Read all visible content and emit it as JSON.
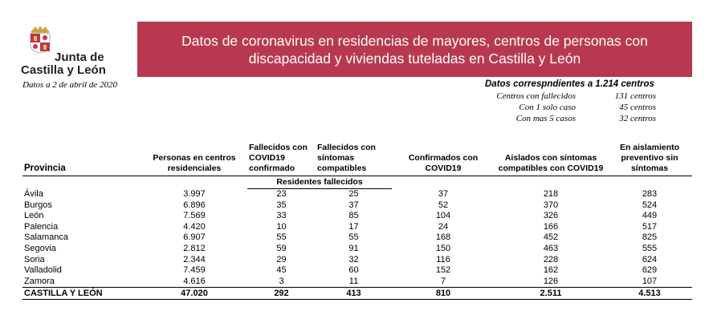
{
  "logo": {
    "line1": "Junta de",
    "line2": "Castilla y León"
  },
  "date_line": "Datos a 2 de abril de 2020",
  "banner": {
    "line1": "Datos de coronavirus en residencias de mayores, centros de personas con",
    "line2": "discapacidad y viviendas tuteladas en Castilla y León"
  },
  "summary": {
    "title": "Datos correspndientes a 1.214 centros",
    "rows": [
      {
        "label": "Centros con fallecidos",
        "value": "131 centros"
      },
      {
        "label": "Con 1 solo caso",
        "value": "45 centros"
      },
      {
        "label": "Con mas 5 casos",
        "value": "32 centros"
      }
    ]
  },
  "table": {
    "headers": [
      "Provincia",
      "Personas en centros residenciales",
      "Fallecidos con COVID19 confirmado",
      "Fallecidos con síntomas compatibles",
      "Confirmados con COVID19",
      "Aislados con síntomas compatibles con COVID19",
      "En aislamiento preventivo sin síntomas"
    ],
    "subheader": "Residentes fallecidos",
    "rows": [
      [
        "Ávila",
        "3.997",
        "23",
        "25",
        "37",
        "218",
        "283"
      ],
      [
        "Burgos",
        "6.896",
        "35",
        "37",
        "52",
        "370",
        "524"
      ],
      [
        "León",
        "7.569",
        "33",
        "85",
        "104",
        "326",
        "449"
      ],
      [
        "Palencia",
        "4.420",
        "10",
        "17",
        "24",
        "166",
        "517"
      ],
      [
        "Salamanca",
        "6.907",
        "55",
        "55",
        "168",
        "452",
        "825"
      ],
      [
        "Segovia",
        "2.812",
        "59",
        "91",
        "150",
        "463",
        "555"
      ],
      [
        "Soria",
        "2.344",
        "29",
        "32",
        "116",
        "228",
        "624"
      ],
      [
        "Valladolid",
        "7.459",
        "45",
        "60",
        "152",
        "162",
        "629"
      ],
      [
        "Zamora",
        "4.616",
        "3",
        "11",
        "7",
        "126",
        "107"
      ]
    ],
    "total": [
      "CASTILLA Y LEÓN",
      "47.020",
      "292",
      "413",
      "810",
      "2.511",
      "4.513"
    ]
  }
}
